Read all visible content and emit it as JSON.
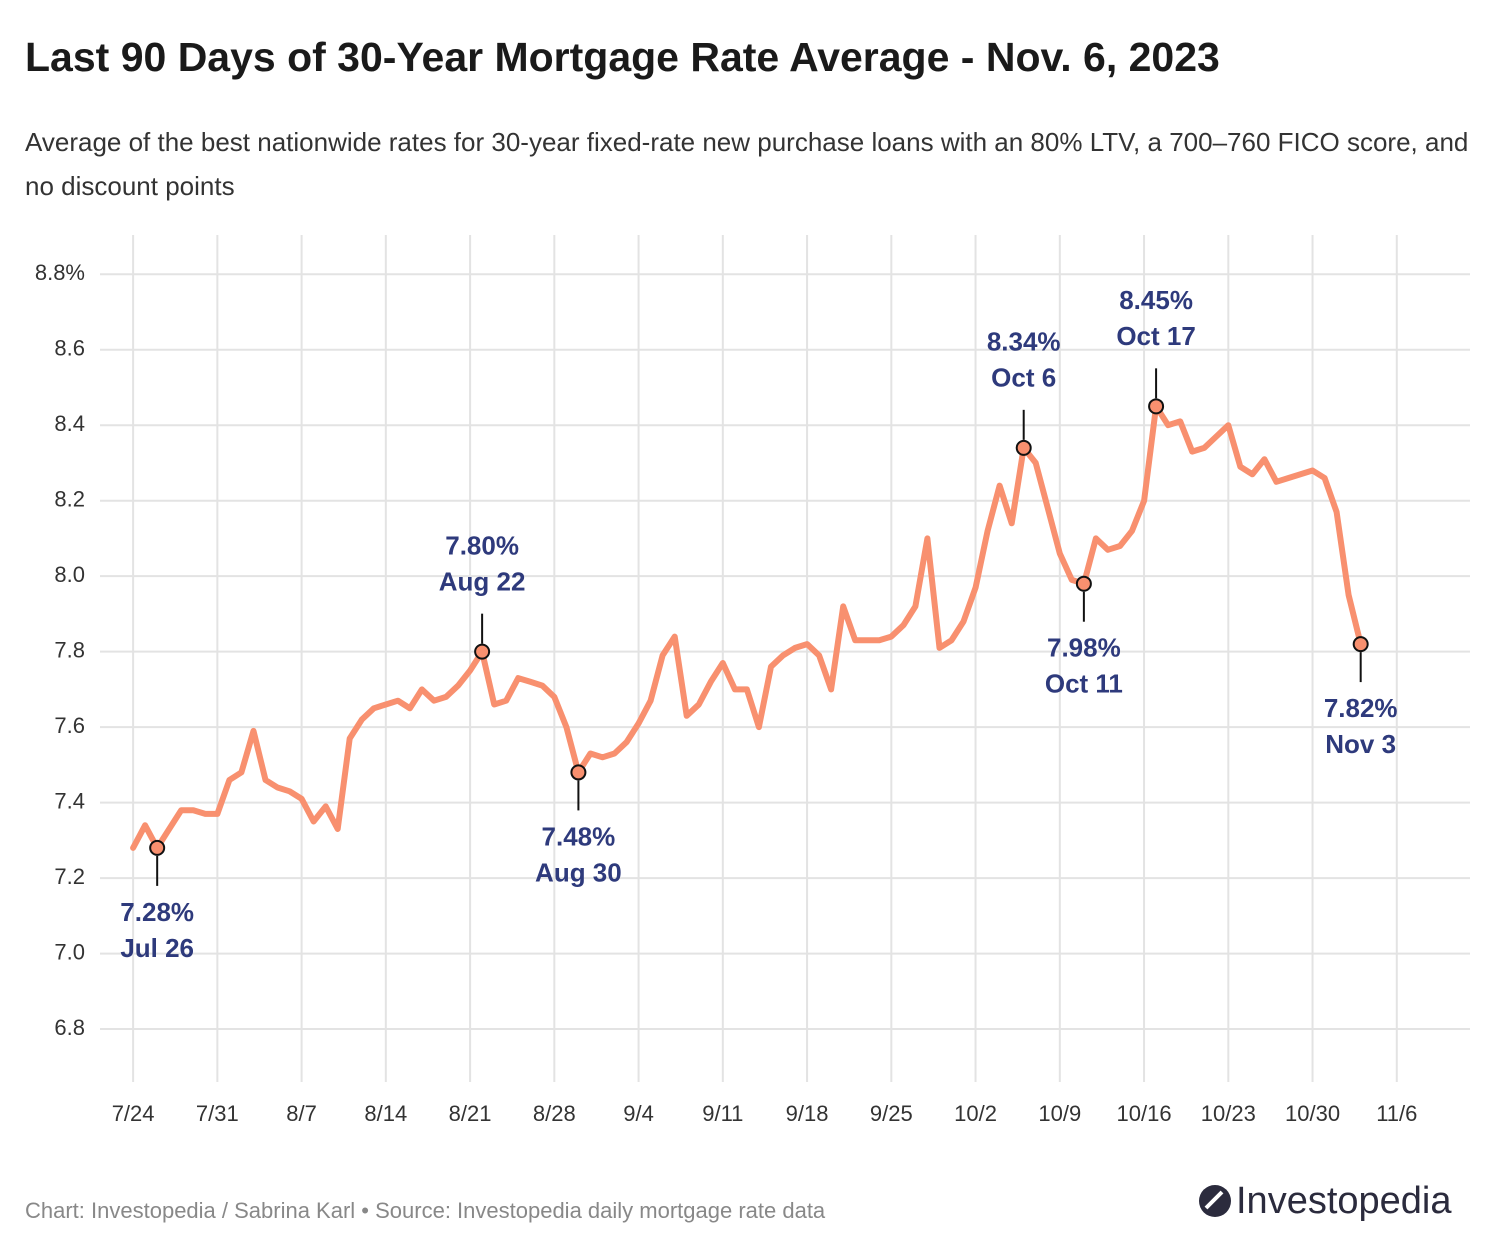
{
  "chart_data": {
    "type": "line",
    "title": "Last 90 Days of 30-Year Mortgage Rate Average - Nov. 6, 2023",
    "subtitle": "Average of the best nationwide rates for 30-year fixed-rate new purchase loans with an 80% LTV, a 700–760 FICO score, and no discount points",
    "x": [
      "7/24",
      "7/25",
      "7/26",
      "7/27",
      "7/28",
      "7/29",
      "7/30",
      "7/31",
      "8/1",
      "8/2",
      "8/3",
      "8/4",
      "8/5",
      "8/6",
      "8/7",
      "8/8",
      "8/9",
      "8/10",
      "8/11",
      "8/12",
      "8/13",
      "8/14",
      "8/15",
      "8/16",
      "8/17",
      "8/18",
      "8/19",
      "8/20",
      "8/21",
      "8/22",
      "8/23",
      "8/24",
      "8/25",
      "8/26",
      "8/27",
      "8/28",
      "8/29",
      "8/30",
      "8/31",
      "9/1",
      "9/2",
      "9/3",
      "9/4",
      "9/5",
      "9/6",
      "9/7",
      "9/8",
      "9/9",
      "9/10",
      "9/11",
      "9/12",
      "9/13",
      "9/14",
      "9/15",
      "9/16",
      "9/17",
      "9/18",
      "9/19",
      "9/20",
      "9/21",
      "9/22",
      "9/23",
      "9/24",
      "9/25",
      "9/26",
      "9/27",
      "9/28",
      "9/29",
      "9/30",
      "10/1",
      "10/2",
      "10/3",
      "10/4",
      "10/5",
      "10/6",
      "10/7",
      "10/8",
      "10/9",
      "10/10",
      "10/11",
      "10/12",
      "10/13",
      "10/14",
      "10/15",
      "10/16",
      "10/17",
      "10/18",
      "10/19",
      "10/20",
      "10/21",
      "10/22",
      "10/23",
      "10/24",
      "10/25",
      "10/26",
      "10/27",
      "10/28",
      "10/29",
      "10/30",
      "10/31",
      "11/1",
      "11/2",
      "11/3"
    ],
    "series": [
      {
        "color": "#f8906f",
        "values": [
          7.28,
          7.34,
          7.28,
          7.33,
          7.38,
          7.38,
          7.37,
          7.37,
          7.46,
          7.48,
          7.59,
          7.46,
          7.44,
          7.43,
          7.41,
          7.35,
          7.39,
          7.33,
          7.57,
          7.62,
          7.65,
          7.66,
          7.67,
          7.65,
          7.7,
          7.67,
          7.68,
          7.71,
          7.75,
          7.8,
          7.66,
          7.67,
          7.73,
          7.72,
          7.71,
          7.68,
          7.6,
          7.48,
          7.53,
          7.52,
          7.53,
          7.56,
          7.61,
          7.67,
          7.79,
          7.84,
          7.63,
          7.66,
          7.72,
          7.77,
          7.7,
          7.7,
          7.6,
          7.76,
          7.79,
          7.81,
          7.82,
          7.79,
          7.7,
          7.92,
          7.83,
          7.83,
          7.83,
          7.84,
          7.87,
          7.92,
          8.1,
          7.81,
          7.83,
          7.88,
          7.97,
          8.12,
          8.24,
          8.14,
          8.34,
          8.3,
          8.18,
          8.06,
          7.99,
          7.98,
          8.1,
          8.07,
          8.08,
          8.12,
          8.2,
          8.45,
          8.4,
          8.41,
          8.33,
          8.34,
          8.37,
          8.4,
          8.29,
          8.27,
          8.31,
          8.25,
          8.26,
          8.27,
          8.28,
          8.26,
          8.17,
          7.95,
          7.82
        ]
      }
    ],
    "xlim": [
      "7/21",
      "11/12"
    ],
    "xticks": [
      "7/24",
      "7/31",
      "8/7",
      "8/14",
      "8/21",
      "8/28",
      "9/4",
      "9/11",
      "9/18",
      "9/25",
      "10/2",
      "10/9",
      "10/16",
      "10/23",
      "10/30",
      "11/6"
    ],
    "ylim": [
      6.665,
      8.904
    ],
    "yticks": [
      6.8,
      {
        "value": 7,
        "label": "7.0"
      },
      7.2,
      7.4,
      7.6,
      7.8,
      {
        "value": 8,
        "label": "8.0"
      },
      8.2,
      8.4,
      8.6,
      {
        "value": 8.8,
        "label": "8.8%"
      }
    ],
    "grid": true,
    "annotations": [
      {
        "x": "7/26",
        "value": 7.28,
        "label": "7.28%",
        "date": "Jul 26",
        "position": "below"
      },
      {
        "x": "8/22",
        "value": 7.8,
        "label": "7.80%",
        "date": "Aug 22",
        "position": "above"
      },
      {
        "x": "8/30",
        "value": 7.48,
        "label": "7.48%",
        "date": "Aug 30",
        "position": "below"
      },
      {
        "x": "10/6",
        "value": 8.34,
        "label": "8.34%",
        "date": "Oct 6",
        "position": "above"
      },
      {
        "x": "10/11",
        "value": 7.98,
        "label": "7.98%",
        "date": "Oct 11",
        "position": "below"
      },
      {
        "x": "10/17",
        "value": 8.45,
        "label": "8.45%",
        "date": "Oct 17",
        "position": "above"
      },
      {
        "x": "11/3",
        "value": 7.82,
        "label": "7.82%",
        "date": "Nov 3",
        "position": "below"
      }
    ],
    "annotation_color": "#2e3a7c",
    "footer": "Chart: Investopedia / Sabrina Karl • Source: Investopedia daily mortgage rate data",
    "logo": "Investopedia"
  }
}
